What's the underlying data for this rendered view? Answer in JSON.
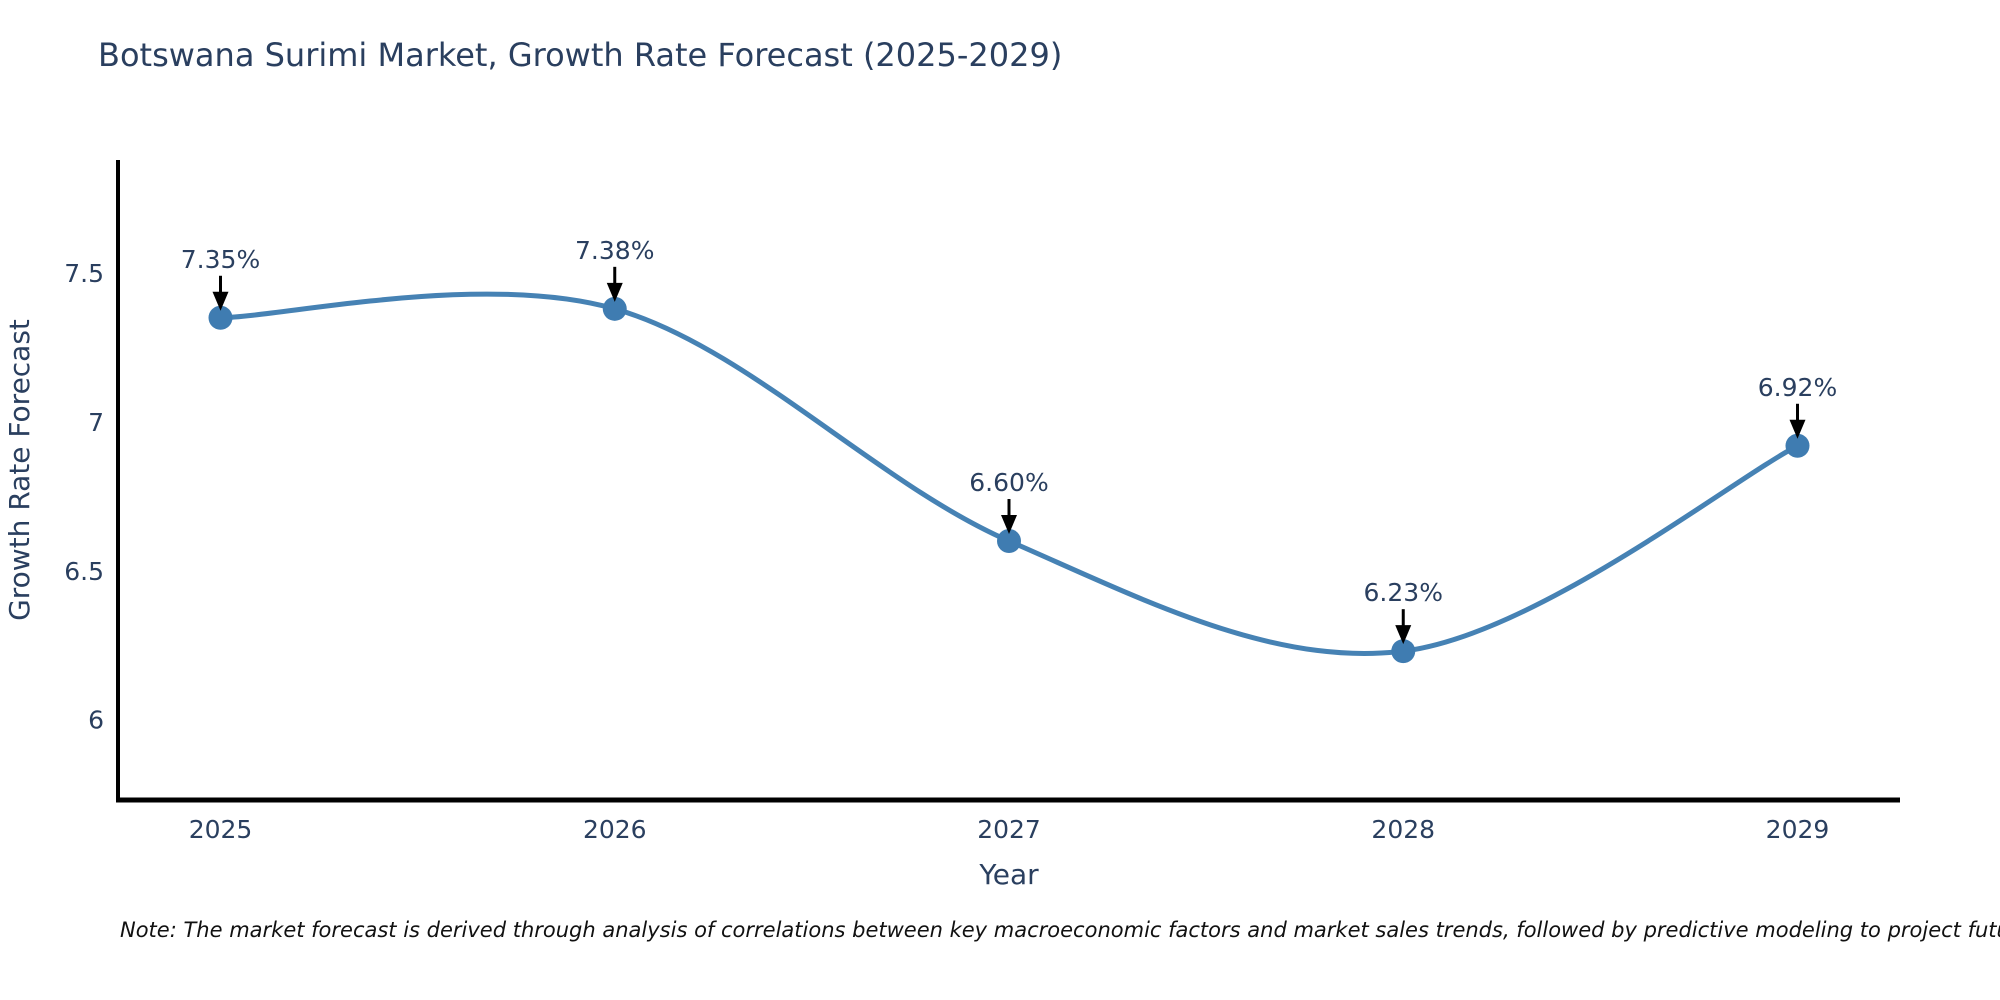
{
  "title": "Botswana Surimi Market, Growth Rate Forecast (2025-2029)",
  "note": "Note: The market forecast is derived through analysis of correlations between key macroeconomic factors and market sales trends, followed by predictive modeling to project future sales",
  "chart_data": {
    "type": "line",
    "title": "Botswana Surimi Market, Growth Rate Forecast (2025-2029)",
    "x": [
      2025,
      2026,
      2027,
      2028,
      2029
    ],
    "x_tick_labels": [
      "2025",
      "2026",
      "2027",
      "2028",
      "2029"
    ],
    "series": [
      {
        "name": "Growth Rate Forecast",
        "values": [
          7.35,
          7.38,
          6.6,
          6.23,
          6.92
        ],
        "point_labels": [
          "7.35%",
          "7.38%",
          "6.60%",
          "6.23%",
          "6.92%"
        ]
      }
    ],
    "xlabel": "Year",
    "ylabel": "Growth Rate Forecast",
    "yticks": [
      6,
      6.5,
      7,
      7.5
    ],
    "ytick_labels": [
      "6",
      "6.5",
      "7",
      "7.5"
    ],
    "xlim": [
      2024.74,
      2029.26
    ],
    "ylim": [
      5.73,
      7.88
    ],
    "line_shape": "spline",
    "grid": false,
    "legend": "none",
    "colors": {
      "line": "#4682b4",
      "marker": "#3f7cb1",
      "text": "#2a3f5f",
      "axis": "#000000",
      "annotation_text": "#2a3f5f",
      "annotation_arrow": "#000000",
      "background": "#ffffff"
    }
  }
}
